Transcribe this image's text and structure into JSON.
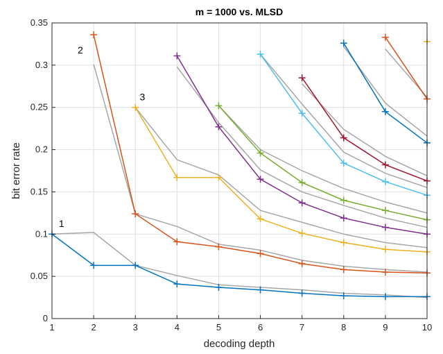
{
  "chart_data": {
    "type": "line",
    "title": "m = 1000  vs.  MLSD",
    "xlabel": "decoding depth",
    "ylabel": "bit error rate",
    "xlim": [
      1,
      10
    ],
    "ylim": [
      0,
      0.35
    ],
    "xticks": [
      "1",
      "2",
      "3",
      "4",
      "5",
      "6",
      "7",
      "8",
      "9",
      "10"
    ],
    "yticks": [
      "0",
      "0.05",
      "0.1",
      "0.15",
      "0.2",
      "0.25",
      "0.3",
      "0.35"
    ],
    "grid": true,
    "colors": {
      "mlsd": "#a6a6a6",
      "axis": "#262626",
      "grid": "#e0e0e0"
    },
    "mlsd_series": [
      {
        "x": [
          1,
          2,
          3,
          4,
          5,
          6,
          7,
          8,
          9,
          10
        ],
        "y": [
          0.1,
          0.102,
          0.063,
          0.051,
          0.04,
          0.037,
          0.034,
          0.03,
          0.028,
          0.025
        ]
      },
      {
        "x": [
          2,
          3,
          4,
          5,
          6,
          7,
          8,
          9,
          10
        ],
        "y": [
          0.301,
          0.124,
          0.109,
          0.088,
          0.081,
          0.069,
          0.062,
          0.058,
          0.055
        ]
      },
      {
        "x": [
          3,
          4,
          5,
          6,
          7,
          8,
          9,
          10
        ],
        "y": [
          0.25,
          0.188,
          0.17,
          0.128,
          0.114,
          0.1,
          0.09,
          0.084
        ]
      },
      {
        "x": [
          4,
          5,
          6,
          7,
          8,
          9,
          10
        ],
        "y": [
          0.298,
          0.232,
          0.176,
          0.15,
          0.134,
          0.119,
          0.108
        ]
      },
      {
        "x": [
          5,
          6,
          7,
          8,
          9,
          10
        ],
        "y": [
          0.252,
          0.2,
          0.175,
          0.154,
          0.138,
          0.125
        ]
      },
      {
        "x": [
          6,
          7,
          8,
          9,
          10
        ],
        "y": [
          0.313,
          0.254,
          0.197,
          0.172,
          0.155
        ]
      },
      {
        "x": [
          7,
          8,
          9,
          10
        ],
        "y": [
          0.278,
          0.224,
          0.192,
          0.169
        ]
      },
      {
        "x": [
          8,
          9,
          10
        ],
        "y": [
          0.322,
          0.255,
          0.216
        ]
      },
      {
        "x": [
          9,
          10
        ],
        "y": [
          0.319,
          0.262
        ]
      },
      {
        "x": [
          10
        ],
        "y": [
          0.316
        ]
      }
    ],
    "series": [
      {
        "color": "#0072bd",
        "x": [
          1,
          2,
          3,
          4,
          5,
          6,
          7,
          8,
          9,
          10
        ],
        "y": [
          0.1,
          0.063,
          0.063,
          0.041,
          0.037,
          0.034,
          0.03,
          0.027,
          0.026,
          0.026
        ]
      },
      {
        "color": "#d95319",
        "x": [
          2,
          3,
          4,
          5,
          6,
          7,
          8,
          9,
          10
        ],
        "y": [
          0.336,
          0.124,
          0.091,
          0.085,
          0.077,
          0.065,
          0.058,
          0.055,
          0.054
        ]
      },
      {
        "color": "#edb120",
        "x": [
          3,
          4,
          5,
          6,
          7,
          8,
          9,
          10
        ],
        "y": [
          0.25,
          0.167,
          0.167,
          0.118,
          0.101,
          0.09,
          0.082,
          0.079
        ]
      },
      {
        "color": "#7e2f8e",
        "x": [
          4,
          5,
          6,
          7,
          8,
          9,
          10
        ],
        "y": [
          0.311,
          0.227,
          0.165,
          0.137,
          0.119,
          0.108,
          0.1
        ]
      },
      {
        "color": "#77ac30",
        "x": [
          5,
          6,
          7,
          8,
          9,
          10
        ],
        "y": [
          0.252,
          0.196,
          0.161,
          0.14,
          0.128,
          0.117
        ]
      },
      {
        "color": "#4dbeee",
        "x": [
          6,
          7,
          8,
          9,
          10
        ],
        "y": [
          0.313,
          0.243,
          0.184,
          0.162,
          0.146
        ]
      },
      {
        "color": "#a2142f",
        "x": [
          7,
          8,
          9,
          10
        ],
        "y": [
          0.285,
          0.214,
          0.182,
          0.163
        ]
      },
      {
        "color": "#0072bd",
        "x": [
          8,
          9,
          10
        ],
        "y": [
          0.326,
          0.245,
          0.208
        ]
      },
      {
        "color": "#d95319",
        "x": [
          9,
          10
        ],
        "y": [
          0.333,
          0.26
        ]
      },
      {
        "color": "#edb120",
        "x": [
          10
        ],
        "y": [
          0.328
        ]
      }
    ],
    "annotations": [
      {
        "text": "1",
        "x": 1.23,
        "y": 0.1125
      },
      {
        "text": "2",
        "x": 1.68,
        "y": 0.318
      },
      {
        "text": "3",
        "x": 3.17,
        "y": 0.2625
      }
    ]
  }
}
